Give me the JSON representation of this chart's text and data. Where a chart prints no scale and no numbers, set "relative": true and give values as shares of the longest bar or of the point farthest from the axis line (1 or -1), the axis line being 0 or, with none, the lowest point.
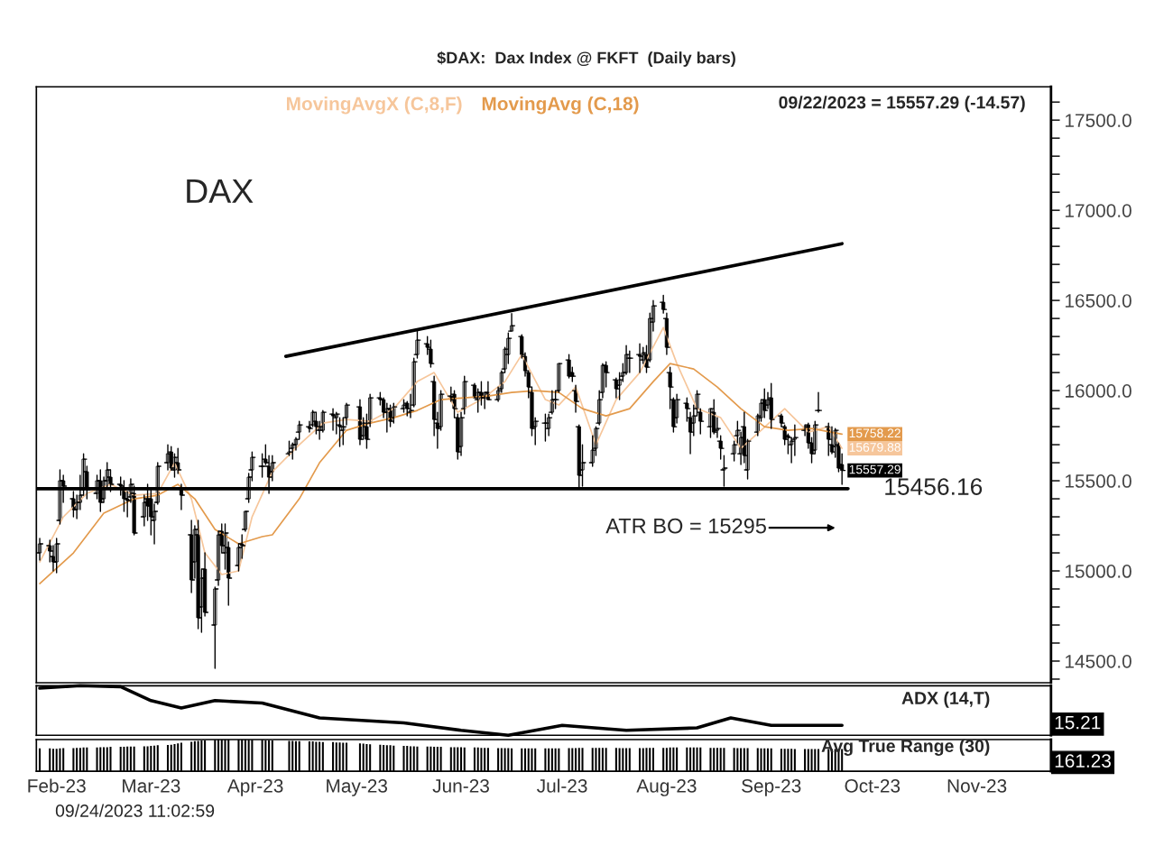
{
  "chart_data": [
    {
      "type": "candlestick",
      "title": "$DAX:  Dax Index @ FKFT  (Daily bars)",
      "x": [
        "2023-01-27",
        "2023-01-30",
        "2023-01-31",
        "2023-02-01",
        "2023-02-02",
        "2023-02-03",
        "2023-02-06",
        "2023-02-07",
        "2023-02-08",
        "2023-02-09",
        "2023-02-10",
        "2023-02-13",
        "2023-02-14",
        "2023-02-15",
        "2023-02-16",
        "2023-02-17",
        "2023-02-20",
        "2023-02-21",
        "2023-02-22",
        "2023-02-23",
        "2023-02-24",
        "2023-02-27",
        "2023-02-28",
        "2023-03-01",
        "2023-03-02",
        "2023-03-03",
        "2023-03-06",
        "2023-03-07",
        "2023-03-08",
        "2023-03-09",
        "2023-03-10",
        "2023-03-13",
        "2023-03-14",
        "2023-03-15",
        "2023-03-16",
        "2023-03-17",
        "2023-03-20",
        "2023-03-21",
        "2023-03-22",
        "2023-03-23",
        "2023-03-24",
        "2023-03-27",
        "2023-03-28",
        "2023-03-29",
        "2023-03-30",
        "2023-03-31",
        "2023-04-03",
        "2023-04-04",
        "2023-04-05",
        "2023-04-06",
        "2023-04-11",
        "2023-04-12",
        "2023-04-13",
        "2023-04-14",
        "2023-04-17",
        "2023-04-18",
        "2023-04-19",
        "2023-04-20",
        "2023-04-21",
        "2023-04-24",
        "2023-04-25",
        "2023-04-26",
        "2023-04-27",
        "2023-04-28",
        "2023-05-02",
        "2023-05-03",
        "2023-05-04",
        "2023-05-05",
        "2023-05-08",
        "2023-05-09",
        "2023-05-10",
        "2023-05-11",
        "2023-05-12",
        "2023-05-15",
        "2023-05-16",
        "2023-05-17",
        "2023-05-18",
        "2023-05-19",
        "2023-05-22",
        "2023-05-23",
        "2023-05-24",
        "2023-05-25",
        "2023-05-26",
        "2023-05-29",
        "2023-05-30",
        "2023-05-31",
        "2023-06-01",
        "2023-06-02",
        "2023-06-05",
        "2023-06-06",
        "2023-06-07",
        "2023-06-08",
        "2023-06-09",
        "2023-06-12",
        "2023-06-13",
        "2023-06-14",
        "2023-06-15",
        "2023-06-16",
        "2023-06-19",
        "2023-06-20",
        "2023-06-21",
        "2023-06-22",
        "2023-06-23",
        "2023-06-26",
        "2023-06-27",
        "2023-06-28",
        "2023-06-29",
        "2023-06-30",
        "2023-07-03",
        "2023-07-04",
        "2023-07-05",
        "2023-07-06",
        "2023-07-07",
        "2023-07-10",
        "2023-07-11",
        "2023-07-12",
        "2023-07-13",
        "2023-07-14",
        "2023-07-17",
        "2023-07-18",
        "2023-07-19",
        "2023-07-20",
        "2023-07-21",
        "2023-07-24",
        "2023-07-25",
        "2023-07-26",
        "2023-07-27",
        "2023-07-28",
        "2023-07-31",
        "2023-08-01",
        "2023-08-02",
        "2023-08-03",
        "2023-08-04",
        "2023-08-07",
        "2023-08-08",
        "2023-08-09",
        "2023-08-10",
        "2023-08-11",
        "2023-08-14",
        "2023-08-15",
        "2023-08-16",
        "2023-08-17",
        "2023-08-18",
        "2023-08-21",
        "2023-08-22",
        "2023-08-23",
        "2023-08-24",
        "2023-08-25",
        "2023-08-28",
        "2023-08-29",
        "2023-08-30",
        "2023-08-31",
        "2023-09-01",
        "2023-09-04",
        "2023-09-05",
        "2023-09-06",
        "2023-09-07",
        "2023-09-08",
        "2023-09-11",
        "2023-09-12",
        "2023-09-13",
        "2023-09-14",
        "2023-09-15",
        "2023-09-18",
        "2023-09-19",
        "2023-09-20",
        "2023-09-21",
        "2023-09-22"
      ],
      "ohlc": [
        [
          15100,
          15180,
          15060,
          15150
        ],
        [
          15140,
          15170,
          15050,
          15110
        ],
        [
          15080,
          15140,
          15000,
          15050
        ],
        [
          15050,
          15180,
          14990,
          15150
        ],
        [
          15280,
          15560,
          15260,
          15500
        ],
        [
          15500,
          15530,
          15380,
          15470
        ],
        [
          15400,
          15440,
          15300,
          15340
        ],
        [
          15340,
          15420,
          15290,
          15380
        ],
        [
          15380,
          15530,
          15340,
          15420
        ],
        [
          15450,
          15650,
          15420,
          15620
        ],
        [
          15550,
          15580,
          15400,
          15450
        ],
        [
          15430,
          15530,
          15400,
          15500
        ],
        [
          15500,
          15560,
          15330,
          15380
        ],
        [
          15400,
          15520,
          15380,
          15500
        ],
        [
          15500,
          15600,
          15460,
          15560
        ],
        [
          15520,
          15560,
          15440,
          15480
        ],
        [
          15480,
          15520,
          15420,
          15470
        ],
        [
          15450,
          15500,
          15330,
          15400
        ],
        [
          15400,
          15440,
          15300,
          15390
        ],
        [
          15410,
          15510,
          15380,
          15480
        ],
        [
          15430,
          15470,
          15200,
          15210
        ],
        [
          15300,
          15420,
          15250,
          15380
        ],
        [
          15400,
          15480,
          15280,
          15360
        ],
        [
          15400,
          15450,
          15200,
          15300
        ],
        [
          15280,
          15370,
          15150,
          15330
        ],
        [
          15380,
          15600,
          15370,
          15580
        ],
        [
          15600,
          15700,
          15560,
          15650
        ],
        [
          15660,
          15690,
          15560,
          15570
        ],
        [
          15560,
          15650,
          15520,
          15630
        ],
        [
          15600,
          15680,
          15540,
          15560
        ],
        [
          15460,
          15480,
          15340,
          15420
        ],
        [
          15200,
          15280,
          14880,
          14950
        ],
        [
          15050,
          15250,
          14960,
          15230
        ],
        [
          15200,
          15280,
          14680,
          14740
        ],
        [
          14800,
          15010,
          14660,
          14960
        ],
        [
          15010,
          15100,
          14750,
          14770
        ],
        [
          14700,
          14910,
          14460,
          14900
        ],
        [
          14950,
          15220,
          14920,
          15200
        ],
        [
          15220,
          15260,
          15100,
          15140
        ],
        [
          15100,
          15260,
          15010,
          15210
        ],
        [
          15130,
          15160,
          14810,
          14960
        ],
        [
          15030,
          15150,
          15000,
          15130
        ],
        [
          15150,
          15200,
          15070,
          15140
        ],
        [
          15230,
          15330,
          15220,
          15330
        ],
        [
          15400,
          15540,
          15380,
          15520
        ],
        [
          15560,
          15660,
          15500,
          15630
        ],
        [
          15580,
          15650,
          15520,
          15580
        ],
        [
          15620,
          15700,
          15590,
          15600
        ],
        [
          15580,
          15640,
          15430,
          15520
        ],
        [
          15550,
          15640,
          15500,
          15600
        ],
        [
          15650,
          15720,
          15640,
          15660
        ],
        [
          15680,
          15710,
          15620,
          15700
        ],
        [
          15700,
          15740,
          15670,
          15730
        ],
        [
          15770,
          15830,
          15730,
          15810
        ],
        [
          15800,
          15830,
          15770,
          15790
        ],
        [
          15810,
          15890,
          15800,
          15880
        ],
        [
          15830,
          15880,
          15760,
          15800
        ],
        [
          15780,
          15830,
          15730,
          15800
        ],
        [
          15780,
          15890,
          15770,
          15880
        ],
        [
          15870,
          15900,
          15780,
          15860
        ],
        [
          15850,
          15880,
          15760,
          15870
        ],
        [
          15810,
          15850,
          15690,
          15800
        ],
        [
          15780,
          15850,
          15700,
          15800
        ],
        [
          15850,
          15930,
          15810,
          15920
        ],
        [
          15910,
          15950,
          15700,
          15730
        ],
        [
          15750,
          15850,
          15730,
          15820
        ],
        [
          15800,
          15870,
          15680,
          15730
        ],
        [
          15820,
          15980,
          15800,
          15960
        ],
        [
          15960,
          15990,
          15920,
          15950
        ],
        [
          15950,
          15960,
          15850,
          15880
        ],
        [
          15880,
          15930,
          15770,
          15900
        ],
        [
          15900,
          15920,
          15800,
          15830
        ],
        [
          15850,
          15930,
          15820,
          15910
        ],
        [
          15900,
          15950,
          15880,
          15920
        ],
        [
          15930,
          15940,
          15860,
          15900
        ],
        [
          15880,
          15980,
          15850,
          15890
        ],
        [
          15920,
          16180,
          15910,
          16160
        ],
        [
          16200,
          16330,
          16180,
          16280
        ],
        [
          16260,
          16300,
          16200,
          16240
        ],
        [
          16230,
          16280,
          16130,
          16150
        ],
        [
          16050,
          16080,
          15750,
          15840
        ],
        [
          15820,
          15880,
          15680,
          15790
        ],
        [
          15800,
          16000,
          15780,
          15980
        ],
        [
          15970,
          16020,
          15940,
          15950
        ],
        [
          15980,
          16000,
          15850,
          15900
        ],
        [
          15850,
          15870,
          15620,
          15660
        ],
        [
          15690,
          15880,
          15640,
          15850
        ],
        [
          15900,
          16080,
          15870,
          16050
        ],
        [
          16030,
          16040,
          15960,
          15960
        ],
        [
          15950,
          16010,
          15880,
          15990
        ],
        [
          15990,
          16050,
          15920,
          15960
        ],
        [
          15960,
          15990,
          15900,
          15990
        ],
        [
          15990,
          16050,
          15950,
          15950
        ],
        [
          15950,
          16020,
          15940,
          16000
        ],
        [
          16010,
          16110,
          15990,
          16100
        ],
        [
          16120,
          16240,
          16100,
          16230
        ],
        [
          16200,
          16320,
          16150,
          16290
        ],
        [
          16330,
          16427,
          16330,
          16360
        ],
        [
          16300,
          16310,
          16180,
          16200
        ],
        [
          16190,
          16210,
          16080,
          16110
        ],
        [
          16100,
          16110,
          15960,
          16020
        ],
        [
          15990,
          16020,
          15750,
          15790
        ],
        [
          15800,
          15850,
          15700,
          15830
        ],
        [
          15820,
          15870,
          15720,
          15820
        ],
        [
          15790,
          15870,
          15750,
          15850
        ],
        [
          15880,
          16000,
          15870,
          15950
        ],
        [
          15950,
          16000,
          15900,
          15950
        ],
        [
          16000,
          16150,
          15990,
          16150
        ],
        [
          16170,
          16200,
          16070,
          16080
        ],
        [
          16100,
          16130,
          16050,
          16080
        ],
        [
          16000,
          16030,
          15880,
          15940
        ],
        [
          15800,
          15810,
          15456,
          15530
        ],
        [
          15560,
          15700,
          15470,
          15600
        ],
        [
          15600,
          15750,
          15580,
          15670
        ],
        [
          15680,
          15800,
          15640,
          15790
        ],
        [
          15820,
          16000,
          15810,
          15950
        ],
        [
          15990,
          16150,
          15960,
          16140
        ],
        [
          16140,
          16160,
          16020,
          16100
        ],
        [
          16060,
          16070,
          15960,
          16010
        ],
        [
          16030,
          16100,
          15950,
          16060
        ],
        [
          16080,
          16150,
          16050,
          16100
        ],
        [
          16100,
          16250,
          16090,
          16200
        ],
        [
          16180,
          16220,
          16100,
          16180
        ],
        [
          16200,
          16260,
          16100,
          16190
        ],
        [
          16170,
          16240,
          16150,
          16210
        ],
        [
          16200,
          16250,
          16100,
          16130
        ],
        [
          16170,
          16430,
          16160,
          16400
        ],
        [
          16380,
          16500,
          16330,
          16470
        ],
        [
          16490,
          16528,
          16430,
          16450
        ],
        [
          16400,
          16430,
          16200,
          16240
        ],
        [
          16100,
          16130,
          15900,
          16020
        ],
        [
          15950,
          15960,
          15770,
          15800
        ],
        [
          15850,
          15980,
          15820,
          15950
        ],
        [
          15930,
          15960,
          15830,
          15900
        ],
        [
          15850,
          15880,
          15650,
          15770
        ],
        [
          15820,
          15920,
          15750,
          15860
        ],
        [
          15900,
          16000,
          15860,
          15980
        ],
        [
          15880,
          15900,
          15760,
          15830
        ],
        [
          15800,
          15900,
          15740,
          15900
        ],
        [
          15880,
          15950,
          15760,
          15770
        ],
        [
          15780,
          15850,
          15740,
          15790
        ],
        [
          15720,
          15750,
          15620,
          15680
        ],
        [
          15560,
          15640,
          15470,
          15570
        ],
        [
          15650,
          15720,
          15610,
          15700
        ],
        [
          15750,
          15830,
          15710,
          15780
        ],
        [
          15650,
          15770,
          15590,
          15740
        ],
        [
          15800,
          15880,
          15600,
          15640
        ],
        [
          15560,
          15730,
          15510,
          15720
        ],
        [
          15770,
          15870,
          15750,
          15860
        ],
        [
          15850,
          15950,
          15830,
          15930
        ],
        [
          15950,
          16010,
          15850,
          15890
        ],
        [
          15920,
          15990,
          15900,
          15950
        ],
        [
          15960,
          16040,
          15790,
          15840
        ],
        [
          15860,
          15870,
          15800,
          15820
        ],
        [
          15800,
          15810,
          15700,
          15730
        ],
        [
          15750,
          15760,
          15650,
          15740
        ],
        [
          15700,
          15740,
          15600,
          15720
        ],
        [
          15730,
          15810,
          15640,
          15740
        ],
        [
          15780,
          15810,
          15750,
          15800
        ],
        [
          15810,
          15820,
          15680,
          15710
        ],
        [
          15710,
          15740,
          15600,
          15650
        ],
        [
          15670,
          15830,
          15650,
          15810
        ],
        [
          15890,
          15990,
          15880,
          15890
        ],
        [
          15800,
          15820,
          15640,
          15730
        ],
        [
          15700,
          15800,
          15650,
          15660
        ],
        [
          15690,
          15790,
          15630,
          15780
        ],
        [
          15700,
          15710,
          15550,
          15570
        ],
        [
          15590,
          15650,
          15480,
          15557.29
        ]
      ],
      "color": "#000000",
      "series": [
        {
          "name": "MovingAvgX (C,8,F)",
          "type": "line",
          "color": "#f6c69b",
          "x": [
            "2023-01-27",
            "2023-02-03",
            "2023-02-10",
            "2023-02-17",
            "2023-02-24",
            "2023-03-03",
            "2023-03-08",
            "2023-03-13",
            "2023-03-17",
            "2023-03-22",
            "2023-03-27",
            "2023-03-31",
            "2023-04-06",
            "2023-04-14",
            "2023-04-21",
            "2023-04-28",
            "2023-05-05",
            "2023-05-12",
            "2023-05-19",
            "2023-05-24",
            "2023-05-31",
            "2023-06-07",
            "2023-06-14",
            "2023-06-19",
            "2023-06-26",
            "2023-06-30",
            "2023-07-05",
            "2023-07-11",
            "2023-07-17",
            "2023-07-24",
            "2023-07-31",
            "2023-08-04",
            "2023-08-10",
            "2023-08-17",
            "2023-08-23",
            "2023-08-29",
            "2023-09-05",
            "2023-09-12",
            "2023-09-18",
            "2023-09-22"
          ],
          "values": [
            15050,
            15300,
            15430,
            15480,
            15420,
            15430,
            15600,
            15400,
            15100,
            14980,
            15000,
            15300,
            15550,
            15700,
            15820,
            15840,
            15830,
            15900,
            16050,
            16100,
            15880,
            15950,
            16050,
            16200,
            15950,
            15920,
            16020,
            15700,
            15950,
            16100,
            16350,
            16150,
            15900,
            15850,
            15680,
            15780,
            15900,
            15770,
            15800,
            15679.88
          ],
          "value_labels": [
            null,
            null,
            null,
            null,
            null,
            null,
            null,
            null,
            null,
            null,
            null,
            null,
            null,
            null,
            null,
            null,
            null,
            null,
            null,
            null,
            null,
            null,
            null,
            null,
            null,
            null,
            null,
            null,
            null,
            null,
            null,
            null,
            null,
            null,
            null,
            null,
            null,
            null,
            null,
            "15679.88"
          ]
        },
        {
          "name": "MovingAvg (C,18)",
          "type": "line",
          "color": "#e39a4c",
          "x": [
            "2023-01-27",
            "2023-02-06",
            "2023-02-15",
            "2023-02-24",
            "2023-03-03",
            "2023-03-09",
            "2023-03-14",
            "2023-03-20",
            "2023-03-27",
            "2023-04-03",
            "2023-04-06",
            "2023-04-14",
            "2023-04-20",
            "2023-04-28",
            "2023-05-05",
            "2023-05-12",
            "2023-05-19",
            "2023-05-26",
            "2023-06-02",
            "2023-06-09",
            "2023-06-16",
            "2023-06-23",
            "2023-06-30",
            "2023-07-07",
            "2023-07-14",
            "2023-07-21",
            "2023-07-28",
            "2023-08-02",
            "2023-08-09",
            "2023-08-16",
            "2023-08-23",
            "2023-08-30",
            "2023-09-06",
            "2023-09-13",
            "2023-09-22"
          ],
          "values": [
            14930,
            15100,
            15320,
            15400,
            15420,
            15480,
            15400,
            15230,
            15150,
            15190,
            15200,
            15400,
            15600,
            15780,
            15820,
            15850,
            15890,
            15950,
            15960,
            15970,
            15990,
            16000,
            15990,
            15900,
            15860,
            15900,
            16050,
            16150,
            16120,
            16020,
            15900,
            15800,
            15780,
            15790,
            15758.22
          ],
          "value_labels": [
            null,
            null,
            null,
            null,
            null,
            null,
            null,
            null,
            null,
            null,
            null,
            null,
            null,
            null,
            null,
            null,
            null,
            null,
            null,
            null,
            null,
            null,
            null,
            null,
            null,
            null,
            null,
            null,
            null,
            null,
            null,
            null,
            null,
            null,
            "15758.22"
          ]
        },
        {
          "type": "line",
          "color": "#000000",
          "x": [
            "2023-04-10",
            "2023-09-22"
          ],
          "values": [
            16190,
            16815
          ]
        }
      ],
      "ref_lines": [
        {
          "axis": "y",
          "value": 15456.16,
          "label": "15456.16",
          "color": "#000000"
        }
      ],
      "annotations": [
        "DAX",
        "09/22/2023 = 15557.29 (-14.57)",
        "09/24/2023 11:02:59",
        "ATR BO = 15295",
        {
          "text": "15557.29",
          "x": "2023-09-22",
          "y": 15557.29
        }
      ],
      "xlim": [
        "2023-01-26",
        "2023-11-23"
      ],
      "ylim": [
        14380,
        17685
      ],
      "yticks": [
        {
          "value": 14400,
          "label": null
        },
        {
          "value": 14500,
          "label": "14500.0"
        },
        {
          "value": 14600,
          "label": null
        },
        {
          "value": 14700,
          "label": null
        },
        {
          "value": 14800,
          "label": null
        },
        {
          "value": 14900,
          "label": null
        },
        {
          "value": 15000,
          "label": "15000.0"
        },
        {
          "value": 15100,
          "label": null
        },
        {
          "value": 15200,
          "label": null
        },
        {
          "value": 15300,
          "label": null
        },
        {
          "value": 15400,
          "label": null
        },
        {
          "value": 15500,
          "label": "15500.0"
        },
        {
          "value": 15600,
          "label": null
        },
        {
          "value": 15700,
          "label": null
        },
        {
          "value": 15800,
          "label": null
        },
        {
          "value": 15900,
          "label": null
        },
        {
          "value": 16000,
          "label": "16000.0"
        },
        {
          "value": 16100,
          "label": null
        },
        {
          "value": 16200,
          "label": null
        },
        {
          "value": 16300,
          "label": null
        },
        {
          "value": 16400,
          "label": null
        },
        {
          "value": 16500,
          "label": "16500.0"
        },
        {
          "value": 16600,
          "label": null
        },
        {
          "value": 16700,
          "label": null
        },
        {
          "value": 16800,
          "label": null
        },
        {
          "value": 16900,
          "label": null
        },
        {
          "value": 17000,
          "label": "17000.0"
        },
        {
          "value": 17100,
          "label": null
        },
        {
          "value": 17200,
          "label": null
        },
        {
          "value": 17300,
          "label": null
        },
        {
          "value": 17400,
          "label": null
        },
        {
          "value": 17500,
          "label": "17500.0"
        },
        {
          "value": 17600,
          "label": null
        }
      ],
      "tick_labels": "y",
      "legend": "top",
      "grid": false
    },
    {
      "type": "line",
      "relative": true,
      "xlim": [
        "2023-01-26",
        "2023-11-23"
      ],
      "tick_labels": false,
      "series": [
        {
          "type": "line",
          "color": "#000000",
          "x": [
            "2023-01-27",
            "2023-02-08",
            "2023-02-20",
            "2023-03-01",
            "2023-03-10",
            "2023-03-20",
            "2023-04-03",
            "2023-04-20",
            "2023-05-15",
            "2023-06-01",
            "2023-06-15",
            "2023-07-01",
            "2023-07-20",
            "2023-08-10",
            "2023-08-20",
            "2023-09-01",
            "2023-09-22"
          ],
          "values": [
            0.95,
            1.0,
            0.98,
            0.7,
            0.55,
            0.7,
            0.65,
            0.35,
            0.25,
            0.1,
            0.0,
            0.2,
            0.1,
            0.15,
            0.35,
            0.2,
            0.2
          ]
        }
      ],
      "annotations": [
        "ADX (14,T)",
        "15.21"
      ]
    },
    {
      "type": "bar",
      "relative": true,
      "xlim": [
        "2023-01-26",
        "2023-11-23"
      ],
      "tick_labels": "x",
      "xticks": [
        {
          "value": "2023-02-01",
          "label": "Feb-23"
        },
        {
          "value": "2023-03-01",
          "label": "Mar-23"
        },
        {
          "value": "2023-04-01",
          "label": "Apr-23"
        },
        {
          "value": "2023-05-01",
          "label": "May-23"
        },
        {
          "value": "2023-06-01",
          "label": "Jun-23"
        },
        {
          "value": "2023-07-01",
          "label": "Jul-23"
        },
        {
          "value": "2023-08-01",
          "label": "Aug-23"
        },
        {
          "value": "2023-09-01",
          "label": "Sep-23"
        },
        {
          "value": "2023-10-01",
          "label": "Oct-23"
        },
        {
          "value": "2023-11-01",
          "label": "Nov-23"
        }
      ],
      "series": [
        {
          "type": "bar",
          "color": "#000000",
          "x": [
            "2023-01-27",
            "2023-01-30",
            "2023-01-31",
            "2023-02-01",
            "2023-02-02",
            "2023-02-03",
            "2023-02-06",
            "2023-02-07",
            "2023-02-08",
            "2023-02-09",
            "2023-02-10",
            "2023-02-13",
            "2023-02-14",
            "2023-02-15",
            "2023-02-16",
            "2023-02-17",
            "2023-02-20",
            "2023-02-21",
            "2023-02-22",
            "2023-02-23",
            "2023-02-24",
            "2023-02-27",
            "2023-02-28",
            "2023-03-01",
            "2023-03-02",
            "2023-03-03",
            "2023-03-06",
            "2023-03-07",
            "2023-03-08",
            "2023-03-09",
            "2023-03-10",
            "2023-03-13",
            "2023-03-14",
            "2023-03-15",
            "2023-03-16",
            "2023-03-17",
            "2023-03-20",
            "2023-03-21",
            "2023-03-22",
            "2023-03-23",
            "2023-03-24",
            "2023-03-27",
            "2023-03-28",
            "2023-03-29",
            "2023-03-30",
            "2023-03-31",
            "2023-04-03",
            "2023-04-04",
            "2023-04-05",
            "2023-04-06",
            "2023-04-11",
            "2023-04-12",
            "2023-04-13",
            "2023-04-14",
            "2023-04-17",
            "2023-04-18",
            "2023-04-19",
            "2023-04-20",
            "2023-04-21",
            "2023-04-24",
            "2023-04-25",
            "2023-04-26",
            "2023-04-27",
            "2023-04-28",
            "2023-05-02",
            "2023-05-03",
            "2023-05-04",
            "2023-05-05",
            "2023-05-08",
            "2023-05-09",
            "2023-05-10",
            "2023-05-11",
            "2023-05-12",
            "2023-05-15",
            "2023-05-16",
            "2023-05-17",
            "2023-05-18",
            "2023-05-19",
            "2023-05-22",
            "2023-05-23",
            "2023-05-24",
            "2023-05-25",
            "2023-05-26",
            "2023-05-29",
            "2023-05-30",
            "2023-05-31",
            "2023-06-01",
            "2023-06-02",
            "2023-06-05",
            "2023-06-06",
            "2023-06-07",
            "2023-06-08",
            "2023-06-09",
            "2023-06-12",
            "2023-06-13",
            "2023-06-14",
            "2023-06-15",
            "2023-06-16",
            "2023-06-19",
            "2023-06-20",
            "2023-06-21",
            "2023-06-22",
            "2023-06-23",
            "2023-06-26",
            "2023-06-27",
            "2023-06-28",
            "2023-06-29",
            "2023-06-30",
            "2023-07-03",
            "2023-07-04",
            "2023-07-05",
            "2023-07-06",
            "2023-07-07",
            "2023-07-10",
            "2023-07-11",
            "2023-07-12",
            "2023-07-13",
            "2023-07-14",
            "2023-07-17",
            "2023-07-18",
            "2023-07-19",
            "2023-07-20",
            "2023-07-21",
            "2023-07-24",
            "2023-07-25",
            "2023-07-26",
            "2023-07-27",
            "2023-07-28",
            "2023-07-31",
            "2023-08-01",
            "2023-08-02",
            "2023-08-03",
            "2023-08-04",
            "2023-08-07",
            "2023-08-08",
            "2023-08-09",
            "2023-08-10",
            "2023-08-11",
            "2023-08-14",
            "2023-08-15",
            "2023-08-16",
            "2023-08-17",
            "2023-08-18",
            "2023-08-21",
            "2023-08-22",
            "2023-08-23",
            "2023-08-24",
            "2023-08-25",
            "2023-08-28",
            "2023-08-29",
            "2023-08-30",
            "2023-08-31",
            "2023-09-01",
            "2023-09-04",
            "2023-09-05",
            "2023-09-06",
            "2023-09-07",
            "2023-09-08",
            "2023-09-11",
            "2023-09-12",
            "2023-09-13",
            "2023-09-14",
            "2023-09-15",
            "2023-09-18",
            "2023-09-19",
            "2023-09-20",
            "2023-09-21",
            "2023-09-22"
          ],
          "values": [
            0.72,
            0.72,
            0.71,
            0.71,
            0.72,
            0.73,
            0.73,
            0.74,
            0.74,
            0.75,
            0.75,
            0.75,
            0.76,
            0.76,
            0.76,
            0.77,
            0.77,
            0.77,
            0.78,
            0.78,
            0.78,
            0.79,
            0.79,
            0.8,
            0.81,
            0.82,
            0.83,
            0.84,
            0.86,
            0.88,
            0.9,
            0.93,
            0.95,
            0.96,
            0.97,
            0.98,
            0.99,
            1.0,
            1.0,
            1.0,
            1.0,
            1.0,
            1.0,
            1.0,
            0.99,
            0.99,
            0.99,
            0.98,
            0.98,
            0.97,
            0.96,
            0.96,
            0.95,
            0.95,
            0.94,
            0.94,
            0.93,
            0.93,
            0.92,
            0.92,
            0.91,
            0.91,
            0.9,
            0.9,
            0.88,
            0.87,
            0.86,
            0.85,
            0.84,
            0.83,
            0.82,
            0.82,
            0.81,
            0.8,
            0.8,
            0.79,
            0.79,
            0.78,
            0.78,
            0.78,
            0.77,
            0.77,
            0.77,
            0.76,
            0.76,
            0.76,
            0.76,
            0.75,
            0.75,
            0.75,
            0.74,
            0.74,
            0.74,
            0.73,
            0.73,
            0.73,
            0.73,
            0.72,
            0.72,
            0.72,
            0.72,
            0.72,
            0.72,
            0.72,
            0.72,
            0.72,
            0.72,
            0.72,
            0.73,
            0.73,
            0.73,
            0.74,
            0.74,
            0.74,
            0.74,
            0.74,
            0.74,
            0.74,
            0.74,
            0.73,
            0.73,
            0.73,
            0.73,
            0.73,
            0.73,
            0.74,
            0.74,
            0.74,
            0.74,
            0.74,
            0.75,
            0.75,
            0.75,
            0.75,
            0.75,
            0.75,
            0.75,
            0.75,
            0.74,
            0.74,
            0.74,
            0.74,
            0.74,
            0.74,
            0.73,
            0.73,
            0.73,
            0.73,
            0.73,
            0.72,
            0.72,
            0.72,
            0.72,
            0.71,
            0.71,
            0.71,
            0.71,
            0.7,
            0.7,
            0.7,
            0.7,
            0.7,
            0.7,
            0.7,
            0.7,
            0.7,
            0.7,
            0.7
          ]
        }
      ],
      "annotations": [
        "Avg True Range (30)",
        "161.23"
      ]
    }
  ]
}
